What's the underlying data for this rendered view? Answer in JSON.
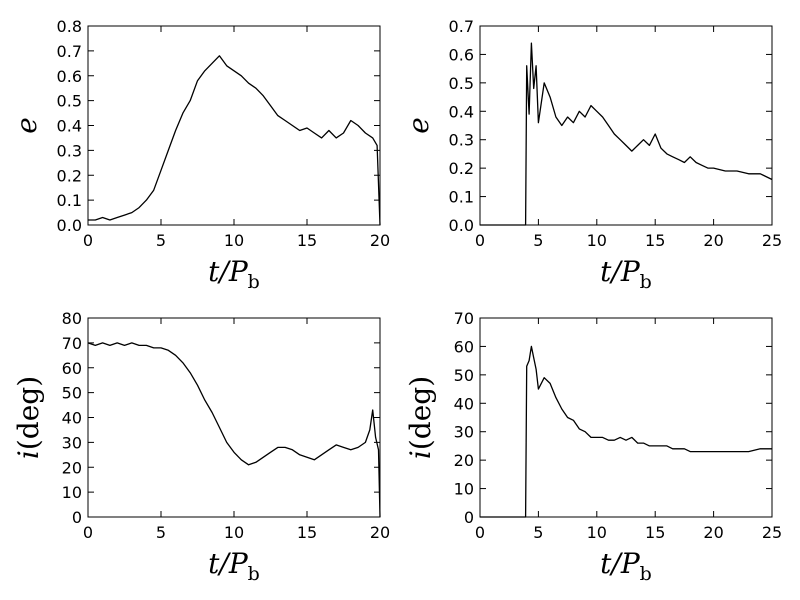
{
  "chart_data": [
    {
      "type": "line",
      "panel": "top-left",
      "xlabel": {
        "var": "t/P",
        "sub": "b"
      },
      "ylabel": {
        "var": "e"
      },
      "xlim": [
        0,
        20
      ],
      "ylim": [
        0,
        0.8
      ],
      "xticks": [
        0,
        5,
        10,
        15,
        20
      ],
      "yticks": [
        0.0,
        0.1,
        0.2,
        0.3,
        0.4,
        0.5,
        0.6,
        0.7,
        0.8
      ],
      "xtick_labels": [
        "0",
        "5",
        "10",
        "15",
        "20"
      ],
      "ytick_labels": [
        "0.0",
        "0.1",
        "0.2",
        "0.3",
        "0.4",
        "0.5",
        "0.6",
        "0.7",
        "0.8"
      ],
      "grid": false,
      "series": [
        {
          "color": "#000000",
          "x": [
            0,
            0.5,
            1,
            1.5,
            2,
            2.5,
            3,
            3.5,
            4,
            4.5,
            5,
            5.5,
            6,
            6.5,
            7,
            7.5,
            8,
            8.5,
            9,
            9.5,
            10,
            10.5,
            11,
            11.5,
            12,
            12.5,
            13,
            13.5,
            14,
            14.5,
            15,
            15.5,
            16,
            16.5,
            17,
            17.5,
            18,
            18.5,
            19,
            19.5,
            19.8,
            20
          ],
          "y": [
            0.02,
            0.02,
            0.03,
            0.02,
            0.03,
            0.04,
            0.05,
            0.07,
            0.1,
            0.14,
            0.22,
            0.3,
            0.38,
            0.45,
            0.5,
            0.58,
            0.62,
            0.65,
            0.68,
            0.64,
            0.62,
            0.6,
            0.57,
            0.55,
            0.52,
            0.48,
            0.44,
            0.42,
            0.4,
            0.38,
            0.39,
            0.37,
            0.35,
            0.38,
            0.35,
            0.37,
            0.42,
            0.4,
            0.37,
            0.35,
            0.32,
            0.0
          ]
        }
      ]
    },
    {
      "type": "line",
      "panel": "top-right",
      "xlabel": {
        "var": "t/P",
        "sub": "b"
      },
      "ylabel": {
        "var": "e"
      },
      "xlim": [
        0,
        25
      ],
      "ylim": [
        0,
        0.7
      ],
      "xticks": [
        0,
        5,
        10,
        15,
        20,
        25
      ],
      "yticks": [
        0.0,
        0.1,
        0.2,
        0.3,
        0.4,
        0.5,
        0.6,
        0.7
      ],
      "xtick_labels": [
        "0",
        "5",
        "10",
        "15",
        "20",
        "25"
      ],
      "ytick_labels": [
        "0.0",
        "0.1",
        "0.2",
        "0.3",
        "0.4",
        "0.5",
        "0.6",
        "0.7"
      ],
      "grid": false,
      "series": [
        {
          "color": "#000000",
          "x": [
            0,
            3.9,
            4.0,
            4.2,
            4.4,
            4.6,
            4.8,
            5.0,
            5.5,
            6,
            6.5,
            7,
            7.5,
            8,
            8.5,
            9,
            9.5,
            10,
            10.5,
            11,
            11.5,
            12,
            12.5,
            13,
            13.5,
            14,
            14.5,
            15,
            15.5,
            16,
            16.5,
            17,
            17.5,
            18,
            18.5,
            19,
            19.5,
            20,
            21,
            22,
            23,
            24,
            25
          ],
          "y": [
            0,
            0,
            0.56,
            0.39,
            0.64,
            0.48,
            0.56,
            0.36,
            0.5,
            0.45,
            0.38,
            0.35,
            0.38,
            0.36,
            0.4,
            0.38,
            0.42,
            0.4,
            0.38,
            0.35,
            0.32,
            0.3,
            0.28,
            0.26,
            0.28,
            0.3,
            0.28,
            0.32,
            0.27,
            0.25,
            0.24,
            0.23,
            0.22,
            0.24,
            0.22,
            0.21,
            0.2,
            0.2,
            0.19,
            0.19,
            0.18,
            0.18,
            0.16
          ]
        }
      ]
    },
    {
      "type": "line",
      "panel": "bottom-left",
      "xlabel": {
        "var": "t/P",
        "sub": "b"
      },
      "ylabel": {
        "var": "i",
        "paren": "(deg)"
      },
      "xlim": [
        0,
        20
      ],
      "ylim": [
        0,
        80
      ],
      "xticks": [
        0,
        5,
        10,
        15,
        20
      ],
      "yticks": [
        0,
        10,
        20,
        30,
        40,
        50,
        60,
        70,
        80
      ],
      "xtick_labels": [
        "0",
        "5",
        "10",
        "15",
        "20"
      ],
      "ytick_labels": [
        "0",
        "10",
        "20",
        "30",
        "40",
        "50",
        "60",
        "70",
        "80"
      ],
      "grid": false,
      "series": [
        {
          "color": "#000000",
          "x": [
            0,
            0.5,
            1,
            1.5,
            2,
            2.5,
            3,
            3.5,
            4,
            4.5,
            5,
            5.5,
            6,
            6.5,
            7,
            7.5,
            8,
            8.5,
            9,
            9.5,
            10,
            10.5,
            11,
            11.5,
            12,
            12.5,
            13,
            13.5,
            14,
            14.5,
            15,
            15.5,
            16,
            16.5,
            17,
            17.5,
            18,
            18.5,
            19,
            19.3,
            19.5,
            19.7,
            19.9,
            20
          ],
          "y": [
            70,
            69,
            70,
            69,
            70,
            69,
            70,
            69,
            69,
            68,
            68,
            67,
            65,
            62,
            58,
            53,
            47,
            42,
            36,
            30,
            26,
            23,
            21,
            22,
            24,
            26,
            28,
            28,
            27,
            25,
            24,
            23,
            25,
            27,
            29,
            28,
            27,
            28,
            30,
            35,
            43,
            32,
            27,
            0
          ]
        }
      ]
    },
    {
      "type": "line",
      "panel": "bottom-right",
      "xlabel": {
        "var": "t/P",
        "sub": "b"
      },
      "ylabel": {
        "var": "i",
        "paren": "(deg)"
      },
      "xlim": [
        0,
        25
      ],
      "ylim": [
        0,
        70
      ],
      "xticks": [
        0,
        5,
        10,
        15,
        20,
        25
      ],
      "yticks": [
        0,
        10,
        20,
        30,
        40,
        50,
        60,
        70
      ],
      "xtick_labels": [
        "0",
        "5",
        "10",
        "15",
        "20",
        "25"
      ],
      "ytick_labels": [
        "0",
        "10",
        "20",
        "30",
        "40",
        "50",
        "60",
        "70"
      ],
      "grid": false,
      "series": [
        {
          "color": "#000000",
          "x": [
            0,
            3.9,
            4.0,
            4.2,
            4.4,
            4.6,
            4.8,
            5.0,
            5.5,
            6,
            6.5,
            7,
            7.5,
            8,
            8.5,
            9,
            9.5,
            10,
            10.5,
            11,
            11.5,
            12,
            12.5,
            13,
            13.5,
            14,
            14.5,
            15,
            15.5,
            16,
            16.5,
            17,
            17.5,
            18,
            19,
            20,
            21,
            22,
            23,
            24,
            25
          ],
          "y": [
            0,
            0,
            53,
            55,
            60,
            56,
            52,
            45,
            49,
            47,
            42,
            38,
            35,
            34,
            31,
            30,
            28,
            28,
            28,
            27,
            27,
            28,
            27,
            28,
            26,
            26,
            25,
            25,
            25,
            25,
            24,
            24,
            24,
            23,
            23,
            23,
            23,
            23,
            23,
            24,
            24
          ]
        }
      ]
    }
  ]
}
